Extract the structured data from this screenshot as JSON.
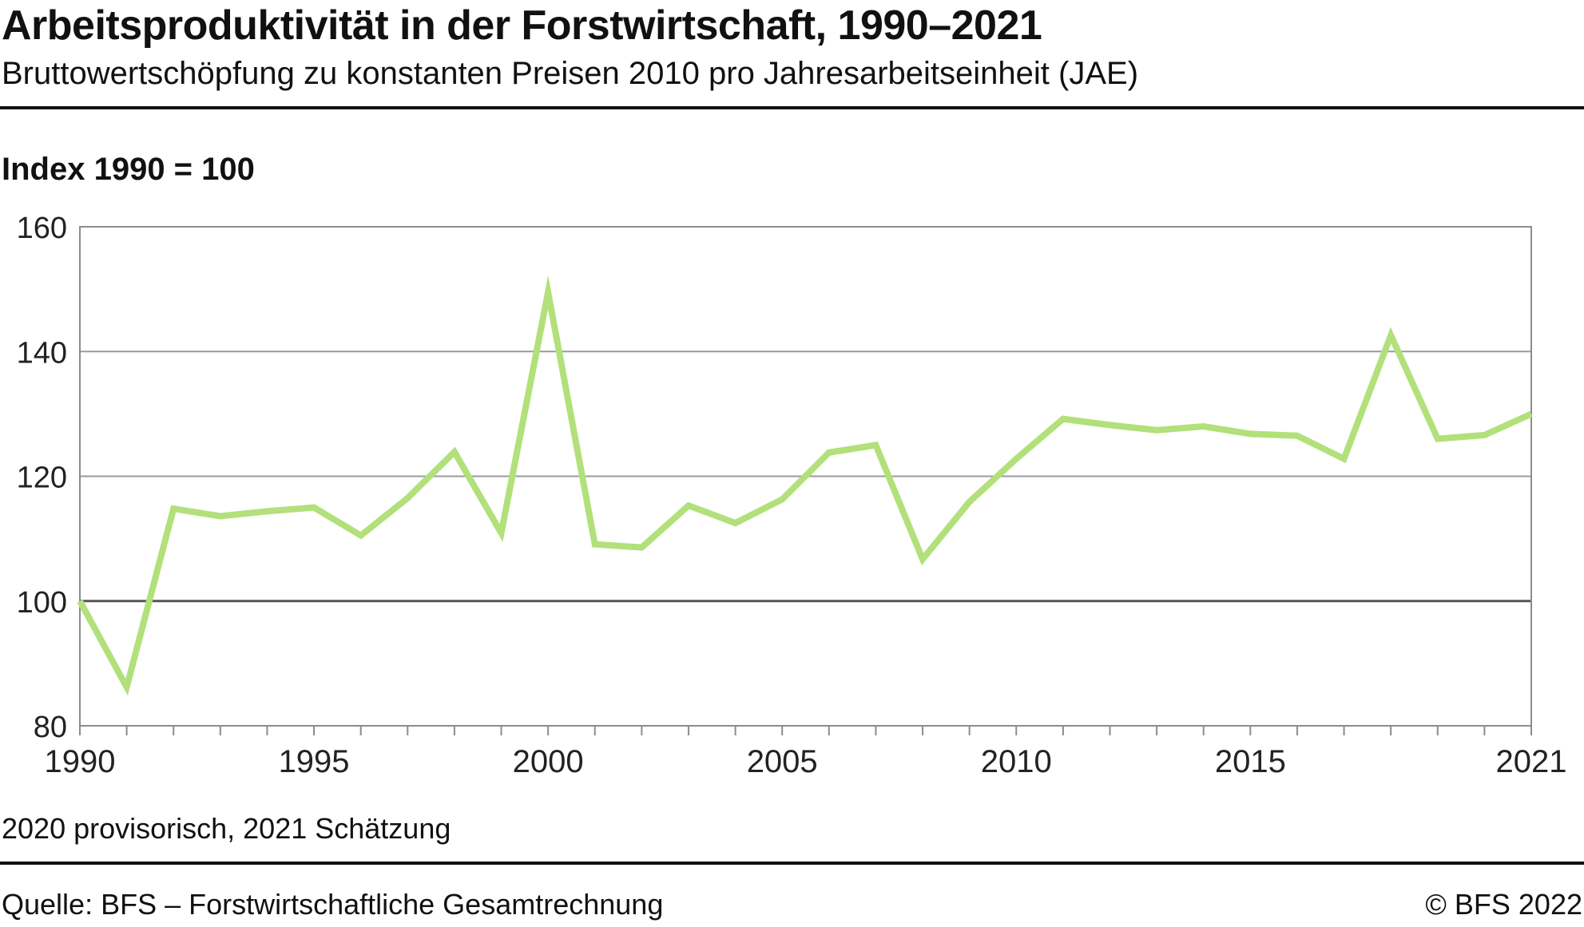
{
  "header": {
    "title": "Arbeitsproduktivität in der Forstwirtschaft, 1990–2021",
    "subtitle": "Bruttowertschöpfung zu konstanten Preisen 2010 pro Jahresarbeitseinheit (JAE)"
  },
  "unit_label": "Index 1990 = 100",
  "footnote": "2020 provisorisch, 2021 Schätzung",
  "source": "Quelle: BFS – Forstwirtschaftliche Gesamtrechnung",
  "copyright": "© BFS 2022",
  "colors": {
    "line": "#b2e07a",
    "grid": "#9a9a9a",
    "baseline": "#555555",
    "frame": "#8c8c8c"
  },
  "chart_data": {
    "type": "line",
    "title": "Arbeitsproduktivität in der Forstwirtschaft, 1990–2021",
    "ylabel": "Index 1990 = 100",
    "xlabel": "",
    "xlim": [
      1990,
      2021
    ],
    "ylim": [
      80,
      160
    ],
    "yticks": [
      80,
      100,
      120,
      140,
      160
    ],
    "xticks": [
      1990,
      1995,
      2000,
      2005,
      2010,
      2015,
      2021
    ],
    "grid": true,
    "reference_line": 100,
    "x": [
      1990,
      1991,
      1992,
      1993,
      1994,
      1995,
      1996,
      1997,
      1998,
      1999,
      2000,
      2001,
      2002,
      2003,
      2004,
      2005,
      2006,
      2007,
      2008,
      2009,
      2010,
      2011,
      2012,
      2013,
      2014,
      2015,
      2016,
      2017,
      2018,
      2019,
      2020,
      2021
    ],
    "series": [
      {
        "values": [
          100,
          86.2,
          114.8,
          113.6,
          114.4,
          115.0,
          110.5,
          116.5,
          123.9,
          110.9,
          149.5,
          109.1,
          108.6,
          115.3,
          112.5,
          116.3,
          123.8,
          125.0,
          106.7,
          115.9,
          122.8,
          129.2,
          128.2,
          127.4,
          128.0,
          126.8,
          126.5,
          122.8,
          142.6,
          126.0,
          126.6,
          130.0
        ]
      }
    ]
  }
}
